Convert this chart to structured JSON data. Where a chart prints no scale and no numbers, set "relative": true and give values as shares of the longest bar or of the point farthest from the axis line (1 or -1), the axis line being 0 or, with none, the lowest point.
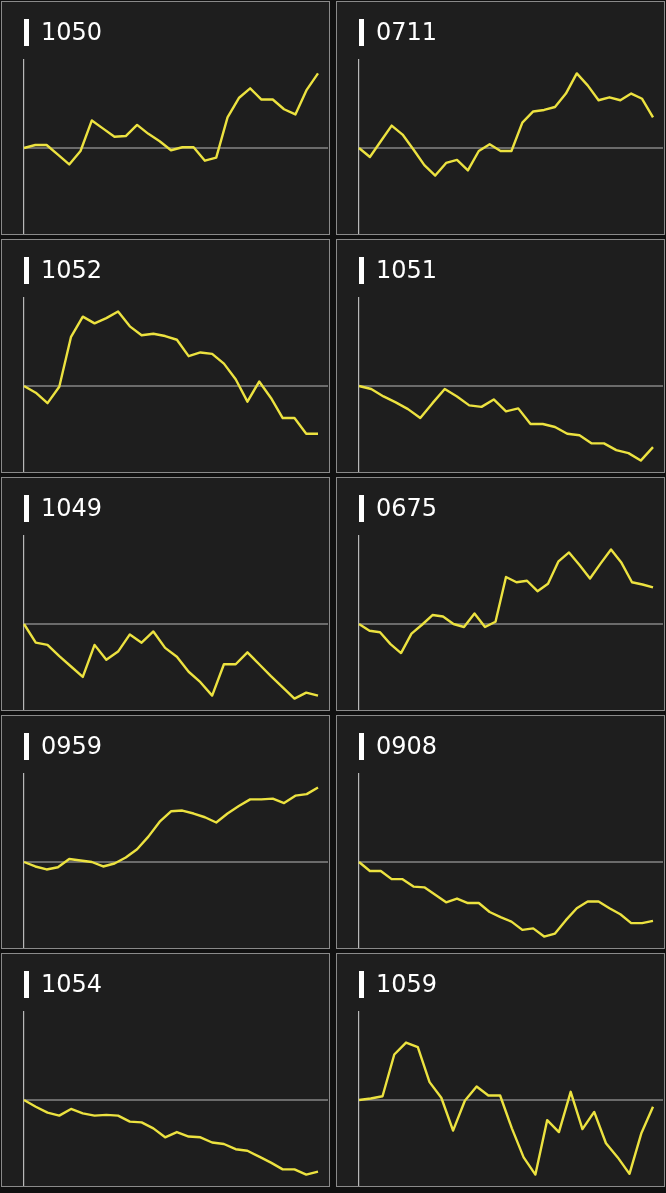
{
  "chart_data": [
    {
      "type": "line",
      "title": "1050",
      "relative": true,
      "color": "#ece240",
      "categories": [
        null,
        null,
        null,
        null,
        null,
        null,
        null,
        null,
        null,
        null,
        null,
        null,
        null,
        null,
        null,
        null,
        null,
        null,
        null,
        null,
        null,
        null,
        null,
        null,
        null,
        null,
        null
      ],
      "values": [
        0,
        0.04,
        0.04,
        -0.09,
        -0.22,
        -0.04,
        0.37,
        0.26,
        0.15,
        0.16,
        0.31,
        0.19,
        0.09,
        -0.03,
        0.01,
        0.01,
        -0.17,
        -0.13,
        0.41,
        0.67,
        0.8,
        0.65,
        0.65,
        0.52,
        0.45,
        0.78,
        1
      ]
    },
    {
      "type": "line",
      "title": "0711",
      "relative": true,
      "color": "#ece240",
      "categories": [
        null,
        null,
        null,
        null,
        null,
        null,
        null,
        null,
        null,
        null,
        null,
        null,
        null,
        null,
        null,
        null,
        null,
        null,
        null,
        null,
        null,
        null,
        null,
        null,
        null,
        null,
        null,
        null
      ],
      "values": [
        0,
        -0.12,
        0.09,
        0.3,
        0.18,
        -0.02,
        -0.23,
        -0.37,
        -0.2,
        -0.16,
        -0.3,
        -0.04,
        0.05,
        -0.04,
        -0.04,
        0.34,
        0.49,
        0.51,
        0.55,
        0.73,
        1,
        0.84,
        0.64,
        0.68,
        0.64,
        0.73,
        0.66,
        0.41
      ]
    },
    {
      "type": "line",
      "title": "1052",
      "relative": true,
      "color": "#ece240",
      "categories": [
        null,
        null,
        null,
        null,
        null,
        null,
        null,
        null,
        null,
        null,
        null,
        null,
        null,
        null,
        null,
        null,
        null,
        null,
        null,
        null,
        null,
        null,
        null,
        null,
        null,
        null
      ],
      "values": [
        0,
        -0.09,
        -0.23,
        -0.01,
        0.66,
        0.93,
        0.84,
        0.91,
        1,
        0.8,
        0.68,
        0.7,
        0.67,
        0.62,
        0.4,
        0.45,
        0.43,
        0.3,
        0.09,
        -0.21,
        0.06,
        -0.16,
        -0.43,
        -0.43,
        -0.64,
        -0.64
      ]
    },
    {
      "type": "line",
      "title": "1051",
      "relative": true,
      "color": "#ece240",
      "categories": [
        null,
        null,
        null,
        null,
        null,
        null,
        null,
        null,
        null,
        null,
        null,
        null,
        null,
        null,
        null,
        null,
        null,
        null,
        null,
        null,
        null,
        null,
        null,
        null,
        null
      ],
      "values": [
        0,
        -0.04,
        -0.14,
        -0.22,
        -0.31,
        -0.43,
        -0.23,
        -0.04,
        -0.14,
        -0.26,
        -0.28,
        -0.18,
        -0.34,
        -0.3,
        -0.51,
        -0.51,
        -0.55,
        -0.64,
        -0.66,
        -0.77,
        -0.77,
        -0.86,
        -0.9,
        -1,
        -0.82
      ]
    },
    {
      "type": "line",
      "title": "1049",
      "relative": true,
      "color": "#ece240",
      "categories": [
        null,
        null,
        null,
        null,
        null,
        null,
        null,
        null,
        null,
        null,
        null,
        null,
        null,
        null,
        null,
        null,
        null,
        null,
        null,
        null,
        null,
        null,
        null,
        null,
        null,
        null
      ],
      "values": [
        0,
        -0.25,
        -0.28,
        -0.43,
        -0.57,
        -0.71,
        -0.28,
        -0.48,
        -0.37,
        -0.14,
        -0.25,
        -0.1,
        -0.32,
        -0.44,
        -0.64,
        -0.78,
        -0.96,
        -0.54,
        -0.54,
        -0.38,
        -0.54,
        -0.7,
        -0.85,
        -1,
        -0.92,
        -0.96
      ]
    },
    {
      "type": "line",
      "title": "0675",
      "relative": true,
      "color": "#ece240",
      "categories": [
        null,
        null,
        null,
        null,
        null,
        null,
        null,
        null,
        null,
        null,
        null,
        null,
        null,
        null,
        null,
        null,
        null,
        null,
        null,
        null,
        null,
        null,
        null,
        null,
        null,
        null,
        null,
        null,
        null
      ],
      "values": [
        0,
        -0.09,
        -0.11,
        -0.27,
        -0.39,
        -0.13,
        -0.01,
        0.12,
        0.1,
        0,
        -0.04,
        0.14,
        -0.04,
        0.03,
        0.63,
        0.56,
        0.58,
        0.44,
        0.54,
        0.84,
        0.96,
        0.79,
        0.61,
        0.81,
        1,
        0.82,
        0.56,
        0.53,
        0.49
      ]
    },
    {
      "type": "line",
      "title": "0959",
      "relative": true,
      "color": "#ece240",
      "categories": [
        null,
        null,
        null,
        null,
        null,
        null,
        null,
        null,
        null,
        null,
        null,
        null,
        null,
        null,
        null,
        null,
        null,
        null,
        null,
        null,
        null,
        null,
        null,
        null,
        null,
        null,
        null
      ],
      "values": [
        0,
        -0.06,
        -0.1,
        -0.07,
        0.04,
        0.02,
        0,
        -0.06,
        -0.02,
        0.06,
        0.17,
        0.34,
        0.54,
        0.68,
        0.69,
        0.65,
        0.6,
        0.53,
        0.65,
        0.75,
        0.84,
        0.84,
        0.85,
        0.79,
        0.89,
        0.91,
        1
      ]
    },
    {
      "type": "line",
      "title": "0908",
      "relative": true,
      "color": "#ece240",
      "categories": [
        null,
        null,
        null,
        null,
        null,
        null,
        null,
        null,
        null,
        null,
        null,
        null,
        null,
        null,
        null,
        null,
        null,
        null,
        null,
        null,
        null,
        null,
        null,
        null,
        null,
        null,
        null,
        null
      ],
      "values": [
        0,
        -0.12,
        -0.12,
        -0.23,
        -0.23,
        -0.33,
        -0.34,
        -0.44,
        -0.54,
        -0.49,
        -0.55,
        -0.55,
        -0.67,
        -0.74,
        -0.8,
        -0.91,
        -0.89,
        -1,
        -0.96,
        -0.78,
        -0.62,
        -0.53,
        -0.53,
        -0.62,
        -0.7,
        -0.82,
        -0.82,
        -0.79
      ]
    },
    {
      "type": "line",
      "title": "1054",
      "relative": true,
      "color": "#ece240",
      "categories": [
        null,
        null,
        null,
        null,
        null,
        null,
        null,
        null,
        null,
        null,
        null,
        null,
        null,
        null,
        null,
        null,
        null,
        null,
        null,
        null,
        null,
        null,
        null,
        null,
        null,
        null
      ],
      "values": [
        0,
        -0.09,
        -0.17,
        -0.21,
        -0.12,
        -0.18,
        -0.21,
        -0.2,
        -0.21,
        -0.29,
        -0.3,
        -0.38,
        -0.5,
        -0.43,
        -0.49,
        -0.5,
        -0.57,
        -0.59,
        -0.66,
        -0.68,
        -0.76,
        -0.84,
        -0.93,
        -0.93,
        -1,
        -0.96
      ]
    },
    {
      "type": "line",
      "title": "1059",
      "relative": true,
      "color": "#ece240",
      "categories": [
        null,
        null,
        null,
        null,
        null,
        null,
        null,
        null,
        null,
        null,
        null,
        null,
        null,
        null,
        null,
        null,
        null,
        null,
        null,
        null,
        null,
        null,
        null,
        null,
        null,
        null
      ],
      "values": [
        0,
        0.02,
        0.05,
        0.61,
        0.77,
        0.71,
        0.24,
        0.03,
        -0.41,
        -0.01,
        0.18,
        0.06,
        0.06,
        -0.38,
        -0.77,
        -1,
        -0.27,
        -0.43,
        0.11,
        -0.39,
        -0.16,
        -0.58,
        -0.77,
        -0.99,
        -0.45,
        -0.09
      ]
    }
  ]
}
